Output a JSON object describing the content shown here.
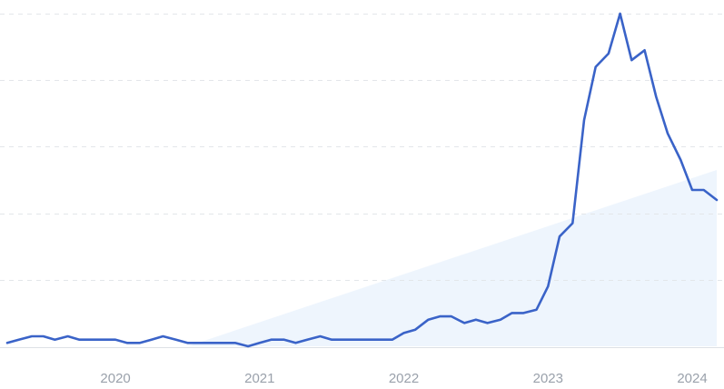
{
  "chart_data": {
    "type": "line",
    "title": "",
    "xlabel": "",
    "ylabel": "",
    "grid": true,
    "legend": "none",
    "colors": {
      "line": "#3a63c8",
      "forecast_fill": "#eaf3fd",
      "grid": "#e3e6ea",
      "tick_text": "#9aa1ab"
    },
    "x_tick_labels": [
      "2020",
      "2021",
      "2022",
      "2023",
      "2024"
    ],
    "x_ticks": [
      2020,
      2021,
      2022,
      2023,
      2024
    ],
    "xlim": [
      2019.25,
      2024.17
    ],
    "ylim": [
      0,
      100
    ],
    "y_gridlines": [
      20,
      40,
      60,
      80,
      100
    ],
    "forecast_band": {
      "x": [
        2020.5,
        2024.17
      ],
      "upper": [
        0,
        53
      ]
    },
    "series": [
      {
        "x": [
          2019.25,
          2019.33,
          2019.42,
          2019.5,
          2019.58,
          2019.67,
          2019.75,
          2019.83,
          2019.92,
          2020.0,
          2020.08,
          2020.17,
          2020.25,
          2020.33,
          2020.42,
          2020.5,
          2020.58,
          2020.67,
          2020.75,
          2020.83,
          2020.92,
          2021.0,
          2021.08,
          2021.17,
          2021.25,
          2021.33,
          2021.42,
          2021.5,
          2021.58,
          2021.67,
          2021.75,
          2021.83,
          2021.92,
          2022.0,
          2022.08,
          2022.17,
          2022.25,
          2022.33,
          2022.42,
          2022.5,
          2022.58,
          2022.67,
          2022.75,
          2022.83,
          2022.92,
          2023.0,
          2023.08,
          2023.17,
          2023.25,
          2023.33,
          2023.42,
          2023.5,
          2023.58,
          2023.67,
          2023.75,
          2023.83,
          2023.92,
          2024.0,
          2024.08,
          2024.17
        ],
        "values": [
          1,
          2,
          3,
          3,
          2,
          3,
          2,
          2,
          2,
          2,
          1,
          1,
          2,
          3,
          2,
          1,
          1,
          1,
          1,
          1,
          0,
          1,
          2,
          2,
          1,
          2,
          3,
          2,
          2,
          2,
          2,
          2,
          2,
          4,
          5,
          8,
          9,
          9,
          7,
          8,
          7,
          8,
          10,
          10,
          11,
          18,
          33,
          37,
          68,
          84,
          88,
          100,
          86,
          89,
          75,
          64,
          56,
          47,
          47,
          44
        ]
      }
    ]
  }
}
